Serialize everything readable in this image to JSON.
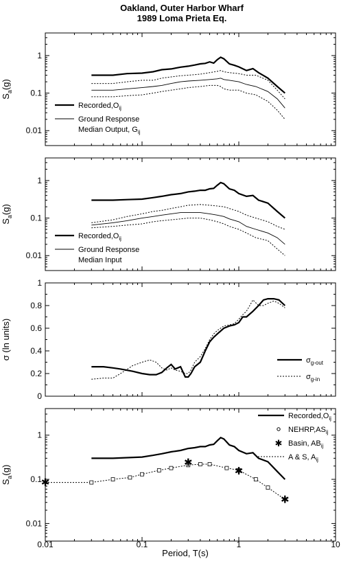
{
  "figure": {
    "title_line1": "Oakland, Outer Harbor Wharf",
    "title_line2": "1989 Loma Prieta Eq.",
    "xlabel": "Period, T(s)",
    "x_tick_labels": [
      "0.01",
      "0.1",
      "1",
      "10"
    ]
  },
  "chart_data": [
    {
      "type": "line",
      "panel": 1,
      "xscale": "log",
      "yscale": "log",
      "xlim": [
        0.01,
        10
      ],
      "ylim": [
        0.004,
        4
      ],
      "ylabel_main": "S",
      "ylabel_sub": "a",
      "ylabel_tail": "(g)",
      "y_ticks": [
        {
          "v": 1,
          "label": "1"
        },
        {
          "v": 0.1,
          "label": "0.1"
        },
        {
          "v": 0.01,
          "label": "0.01"
        }
      ],
      "legend": [
        {
          "text": "Recorded,O",
          "sub": "ij",
          "extra": "",
          "style": "thick"
        },
        {
          "text": "Ground Response",
          "sub": "",
          "extra": "Median Output, G",
          "extra_sub": "ij",
          "style": "thin"
        }
      ],
      "series": [
        {
          "style": "thick",
          "x": [
            0.03,
            0.05,
            0.07,
            0.1,
            0.13,
            0.16,
            0.2,
            0.25,
            0.3,
            0.35,
            0.4,
            0.45,
            0.5,
            0.55,
            0.6,
            0.65,
            0.7,
            0.8,
            0.9,
            1.0,
            1.2,
            1.4,
            1.6,
            2.0,
            2.5,
            3.0
          ],
          "y": [
            0.3,
            0.3,
            0.33,
            0.34,
            0.37,
            0.42,
            0.44,
            0.49,
            0.52,
            0.56,
            0.6,
            0.62,
            0.68,
            0.63,
            0.78,
            0.9,
            0.82,
            0.6,
            0.55,
            0.5,
            0.4,
            0.45,
            0.35,
            0.25,
            0.15,
            0.1
          ]
        },
        {
          "style": "dotted",
          "x": [
            0.03,
            0.05,
            0.07,
            0.1,
            0.13,
            0.16,
            0.2,
            0.25,
            0.3,
            0.4,
            0.5,
            0.6,
            0.65,
            0.7,
            0.8,
            1.0,
            1.2,
            1.5,
            2.0,
            2.5,
            3.0
          ],
          "y": [
            0.18,
            0.18,
            0.2,
            0.22,
            0.22,
            0.25,
            0.27,
            0.29,
            0.3,
            0.32,
            0.35,
            0.38,
            0.4,
            0.37,
            0.35,
            0.33,
            0.3,
            0.3,
            0.22,
            0.12,
            0.07
          ]
        },
        {
          "style": "thin",
          "x": [
            0.03,
            0.05,
            0.07,
            0.1,
            0.13,
            0.16,
            0.2,
            0.25,
            0.3,
            0.4,
            0.5,
            0.6,
            0.65,
            0.7,
            0.8,
            1.0,
            1.2,
            1.5,
            2.0,
            2.5,
            3.0
          ],
          "y": [
            0.12,
            0.12,
            0.13,
            0.14,
            0.15,
            0.16,
            0.18,
            0.2,
            0.21,
            0.22,
            0.23,
            0.24,
            0.25,
            0.23,
            0.22,
            0.2,
            0.17,
            0.15,
            0.11,
            0.07,
            0.04
          ]
        },
        {
          "style": "dotted",
          "x": [
            0.03,
            0.05,
            0.07,
            0.1,
            0.13,
            0.16,
            0.2,
            0.25,
            0.3,
            0.4,
            0.5,
            0.6,
            0.65,
            0.7,
            0.8,
            1.0,
            1.2,
            1.5,
            2.0,
            2.5,
            3.0
          ],
          "y": [
            0.08,
            0.08,
            0.085,
            0.09,
            0.1,
            0.11,
            0.12,
            0.13,
            0.14,
            0.15,
            0.16,
            0.16,
            0.15,
            0.13,
            0.12,
            0.12,
            0.1,
            0.09,
            0.06,
            0.035,
            0.02
          ]
        }
      ]
    },
    {
      "type": "line",
      "panel": 2,
      "xscale": "log",
      "yscale": "log",
      "xlim": [
        0.01,
        10
      ],
      "ylim": [
        0.004,
        4
      ],
      "ylabel_main": "S",
      "ylabel_sub": "a",
      "ylabel_tail": "(g)",
      "y_ticks": [
        {
          "v": 1,
          "label": "1"
        },
        {
          "v": 0.1,
          "label": "0.1"
        },
        {
          "v": 0.01,
          "label": "0.01"
        }
      ],
      "legend": [
        {
          "text": "Recorded,O",
          "sub": "ij",
          "extra": "",
          "style": "thick"
        },
        {
          "text": "Ground Response",
          "sub": "",
          "extra": "Median Input",
          "extra_sub": "",
          "style": "thin"
        }
      ],
      "series": [
        {
          "style": "thick",
          "x": [
            0.03,
            0.05,
            0.07,
            0.1,
            0.13,
            0.16,
            0.2,
            0.25,
            0.3,
            0.35,
            0.4,
            0.45,
            0.5,
            0.55,
            0.6,
            0.65,
            0.7,
            0.8,
            0.9,
            1.0,
            1.2,
            1.4,
            1.6,
            2.0,
            2.5,
            3.0
          ],
          "y": [
            0.3,
            0.3,
            0.31,
            0.32,
            0.35,
            0.38,
            0.42,
            0.45,
            0.5,
            0.52,
            0.55,
            0.55,
            0.6,
            0.62,
            0.75,
            0.88,
            0.82,
            0.6,
            0.55,
            0.45,
            0.38,
            0.4,
            0.3,
            0.25,
            0.15,
            0.1
          ]
        },
        {
          "style": "dotted",
          "x": [
            0.03,
            0.05,
            0.07,
            0.1,
            0.13,
            0.16,
            0.2,
            0.25,
            0.3,
            0.4,
            0.5,
            0.6,
            0.7,
            0.8,
            1.0,
            1.2,
            1.5,
            2.0,
            2.5,
            3.0
          ],
          "y": [
            0.075,
            0.09,
            0.11,
            0.13,
            0.15,
            0.16,
            0.18,
            0.2,
            0.22,
            0.23,
            0.22,
            0.21,
            0.2,
            0.18,
            0.15,
            0.12,
            0.1,
            0.08,
            0.06,
            0.05
          ]
        },
        {
          "style": "thin",
          "x": [
            0.03,
            0.05,
            0.07,
            0.1,
            0.13,
            0.16,
            0.2,
            0.25,
            0.3,
            0.4,
            0.5,
            0.6,
            0.7,
            0.8,
            1.0,
            1.2,
            1.5,
            2.0,
            2.5,
            3.0
          ],
          "y": [
            0.065,
            0.075,
            0.085,
            0.1,
            0.11,
            0.12,
            0.13,
            0.14,
            0.14,
            0.14,
            0.13,
            0.12,
            0.11,
            0.095,
            0.08,
            0.06,
            0.05,
            0.04,
            0.03,
            0.02
          ]
        },
        {
          "style": "dotted",
          "x": [
            0.03,
            0.05,
            0.07,
            0.1,
            0.13,
            0.16,
            0.2,
            0.25,
            0.3,
            0.4,
            0.5,
            0.6,
            0.7,
            0.8,
            1.0,
            1.2,
            1.5,
            2.0,
            2.5,
            3.0
          ],
          "y": [
            0.055,
            0.06,
            0.065,
            0.07,
            0.08,
            0.085,
            0.09,
            0.095,
            0.1,
            0.1,
            0.09,
            0.08,
            0.07,
            0.06,
            0.05,
            0.04,
            0.03,
            0.025,
            0.015,
            0.01
          ]
        }
      ]
    },
    {
      "type": "line",
      "panel": 3,
      "xscale": "log",
      "yscale": "linear",
      "xlim": [
        0.01,
        10
      ],
      "ylim": [
        0,
        1
      ],
      "ylabel_main": "σ (ln units)",
      "ylabel_sub": "",
      "ylabel_tail": "",
      "y_ticks": [
        {
          "v": 1,
          "label": "1"
        },
        {
          "v": 0.8,
          "label": "0.8"
        },
        {
          "v": 0.6,
          "label": "0.6"
        },
        {
          "v": 0.4,
          "label": "0.4"
        },
        {
          "v": 0.2,
          "label": "0.2"
        },
        {
          "v": 0,
          "label": "0"
        }
      ],
      "legend": [
        {
          "text": "σ",
          "sub": "g-out",
          "extra": "",
          "style": "thick"
        },
        {
          "text": "σ",
          "sub": "g-in",
          "extra": "",
          "style": "dotted"
        }
      ],
      "series": [
        {
          "style": "thick",
          "x": [
            0.03,
            0.04,
            0.05,
            0.06,
            0.08,
            0.1,
            0.12,
            0.14,
            0.16,
            0.18,
            0.2,
            0.22,
            0.25,
            0.28,
            0.3,
            0.32,
            0.35,
            0.4,
            0.45,
            0.5,
            0.55,
            0.6,
            0.7,
            0.8,
            0.9,
            1.0,
            1.1,
            1.2,
            1.4,
            1.6,
            1.8,
            2.0,
            2.3,
            2.6,
            3.0
          ],
          "y": [
            0.26,
            0.26,
            0.25,
            0.24,
            0.22,
            0.2,
            0.19,
            0.19,
            0.21,
            0.25,
            0.28,
            0.24,
            0.26,
            0.17,
            0.17,
            0.2,
            0.26,
            0.3,
            0.4,
            0.48,
            0.52,
            0.55,
            0.6,
            0.62,
            0.63,
            0.65,
            0.7,
            0.7,
            0.75,
            0.8,
            0.85,
            0.86,
            0.86,
            0.85,
            0.8
          ]
        },
        {
          "style": "dotted",
          "x": [
            0.03,
            0.04,
            0.05,
            0.06,
            0.08,
            0.1,
            0.12,
            0.14,
            0.16,
            0.18,
            0.2,
            0.22,
            0.25,
            0.28,
            0.3,
            0.32,
            0.35,
            0.4,
            0.45,
            0.5,
            0.55,
            0.6,
            0.7,
            0.8,
            0.9,
            1.0,
            1.1,
            1.2,
            1.4,
            1.6,
            1.8,
            2.0,
            2.3,
            2.6,
            3.0
          ],
          "y": [
            0.15,
            0.16,
            0.16,
            0.2,
            0.27,
            0.3,
            0.32,
            0.3,
            0.25,
            0.23,
            0.25,
            0.23,
            0.22,
            0.2,
            0.2,
            0.23,
            0.3,
            0.35,
            0.42,
            0.5,
            0.55,
            0.58,
            0.62,
            0.63,
            0.64,
            0.68,
            0.72,
            0.75,
            0.85,
            0.8,
            0.8,
            0.82,
            0.84,
            0.82,
            0.78
          ]
        }
      ]
    },
    {
      "type": "line",
      "panel": 4,
      "xscale": "log",
      "yscale": "log",
      "xlim": [
        0.01,
        10
      ],
      "ylim": [
        0.004,
        4
      ],
      "ylabel_main": "S",
      "ylabel_sub": "a",
      "ylabel_tail": "(g)",
      "y_ticks": [
        {
          "v": 1,
          "label": "1"
        },
        {
          "v": 0.1,
          "label": "0.1"
        },
        {
          "v": 0.01,
          "label": "0.01"
        }
      ],
      "legend": [
        {
          "text": "Recorded,O",
          "sub": "ij",
          "extra": "",
          "style": "thick"
        },
        {
          "text": "NEHRP,AS",
          "sub": "ij",
          "extra": "",
          "style": "circle"
        },
        {
          "text": "Basin, AB",
          "sub": "ij",
          "extra": "",
          "style": "star"
        },
        {
          "text": "A & S, A",
          "sub": "ij",
          "extra": "",
          "style": "dotted"
        }
      ],
      "series": [
        {
          "style": "thick",
          "x": [
            0.03,
            0.05,
            0.07,
            0.1,
            0.13,
            0.16,
            0.2,
            0.25,
            0.3,
            0.35,
            0.4,
            0.45,
            0.5,
            0.55,
            0.6,
            0.65,
            0.7,
            0.8,
            0.9,
            1.0,
            1.2,
            1.4,
            1.6,
            2.0,
            2.5,
            3.0
          ],
          "y": [
            0.3,
            0.3,
            0.31,
            0.32,
            0.35,
            0.38,
            0.42,
            0.45,
            0.5,
            0.52,
            0.55,
            0.55,
            0.6,
            0.62,
            0.75,
            0.88,
            0.82,
            0.6,
            0.55,
            0.45,
            0.38,
            0.4,
            0.3,
            0.25,
            0.15,
            0.1
          ]
        },
        {
          "style": "dotted_squares",
          "x": [
            0.01,
            0.03,
            0.05,
            0.075,
            0.1,
            0.15,
            0.2,
            0.3,
            0.4,
            0.5,
            0.75,
            1.0,
            1.5,
            2.0,
            3.0
          ],
          "y": [
            0.085,
            0.085,
            0.1,
            0.11,
            0.13,
            0.16,
            0.18,
            0.21,
            0.22,
            0.22,
            0.18,
            0.16,
            0.1,
            0.065,
            0.035
          ]
        },
        {
          "style": "star",
          "x": [
            0.01,
            0.3,
            1.0,
            3.0
          ],
          "y": [
            0.085,
            0.24,
            0.155,
            0.035
          ]
        }
      ]
    }
  ]
}
